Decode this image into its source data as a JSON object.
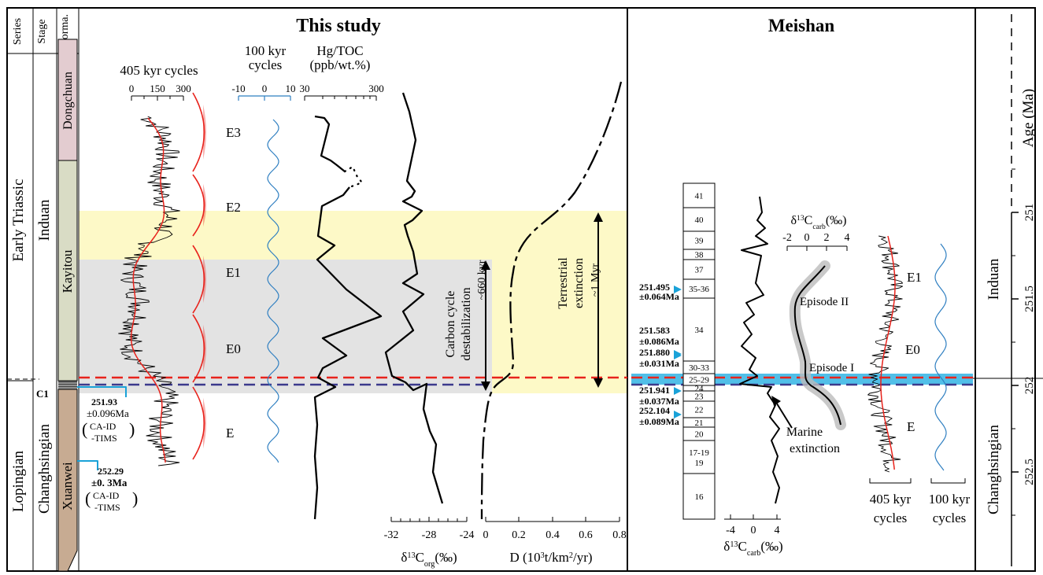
{
  "colors": {
    "red": "#e8231c",
    "blue": "#2f7fc1",
    "cyan": "#17a9e0",
    "yellow": "#fdf9c7",
    "grey": "#e3e3e3",
    "dong": "#e3ccd0",
    "kay": "#d9dcc5",
    "xuan": "#c7ab92",
    "navy": "#3c3a8c",
    "black": "#000000"
  },
  "headers": {
    "series": "Series",
    "stage": "Stage",
    "formation": "Forma."
  },
  "series": {
    "early": "Early Triassic",
    "lopingian": "Lopingian"
  },
  "stages": {
    "induan": "Induan",
    "changhsingian": "Changhsingian"
  },
  "formations": {
    "dongchuan": "Dongchuan",
    "kayitou": "Kayitou",
    "xuanwei": "Xuanwei",
    "c1": "C1"
  },
  "this_study": {
    "title": "This study",
    "ages": [
      {
        "age": "251.93",
        "err": "±0.096Ma",
        "method1": "CA-ID",
        "method2": "-TIMS"
      },
      {
        "age": "252.29",
        "err": "±0. 3Ma",
        "method1": "CA-ID",
        "method2": "-TIMS"
      }
    ],
    "col405": {
      "title": "405 kyr cycles",
      "ticks": [
        "0",
        "150",
        "300"
      ],
      "ecc": [
        "E3",
        "E2",
        "E1",
        "E0",
        "E"
      ]
    },
    "col100": {
      "title1": "100 kyr",
      "title2": "cycles",
      "ticks": [
        "-10",
        "0",
        "10"
      ]
    },
    "hg": {
      "title1": "Hg/TOC",
      "title2": "(ppb/wt.%)",
      "ticks": [
        "30",
        "300"
      ]
    },
    "corg": {
      "label_pre": "δ",
      "label_sup": "13",
      "label_main": "C",
      "label_sub": "org",
      "label_post": "(‰)",
      "ticks": [
        "-32",
        "-28",
        "-24"
      ]
    },
    "d": {
      "label_pre": "D (10",
      "label_sup": "3",
      "label_mid": "t/km",
      "label_sup2": "2",
      "label_post": "/yr)",
      "ticks": [
        "0",
        "0.2",
        "0.4",
        "0.6",
        "0.8"
      ]
    },
    "carbon_text": [
      "Carbon cycle",
      "destabilization",
      "~660 kyr"
    ],
    "terrestrial_text": [
      "Terrestrial",
      "extinction",
      "~1 Myr"
    ]
  },
  "meishan": {
    "title": "Meishan",
    "beds": [
      "41",
      "40",
      "39",
      "38",
      "37",
      "35-36",
      "34",
      "30-33",
      "25-29",
      "24",
      "23",
      "22",
      "21",
      "20",
      "17-19",
      "16"
    ],
    "ages": [
      {
        "age": "251.495",
        "err": "±0.064Ma"
      },
      {
        "age": "251.583",
        "err": "±0.086Ma"
      },
      {
        "age": "251.880",
        "err": "±0.031Ma"
      },
      {
        "age": "251.941",
        "err": "±0.037Ma"
      },
      {
        "age": "252.104",
        "err": "±0.089Ma"
      }
    ],
    "carb_ticks": [
      "-4",
      "0",
      "4"
    ],
    "carb2_ticks": [
      "-2",
      "0",
      "2",
      "4"
    ],
    "carb_label_pre": "δ",
    "carb_label_sup": "13",
    "carb_label_main": "C",
    "carb_label_sub": "carb",
    "carb_label_post": "(‰)",
    "episode1": "Episode I",
    "episode2": "Episode II",
    "marine": [
      "Marine",
      "extinction"
    ],
    "ecc": [
      "E1",
      "E0",
      "E"
    ],
    "c405": [
      "405 kyr",
      "cycles"
    ],
    "c100": [
      "100 kyr",
      "cycles"
    ]
  },
  "age_axis": {
    "title": "Age (Ma)",
    "ticks": [
      "251",
      "251.5",
      "252",
      "252.5"
    ],
    "induan": "Induan",
    "changhsingian": "Changhsingian"
  },
  "chart_data": [
    {
      "type": "line",
      "title": "405 kyr cycles",
      "xlim": [
        0,
        300
      ],
      "x_ticks": [
        0,
        150,
        300
      ]
    },
    {
      "type": "line",
      "title": "100 kyr cycles",
      "xlim": [
        -10,
        10
      ],
      "x_ticks": [
        -10,
        0,
        10
      ]
    },
    {
      "type": "line",
      "title": "Hg/TOC",
      "xlabel": "(ppb/wt.%)",
      "xlim": [
        30,
        300
      ],
      "x_ticks": [
        30,
        300
      ]
    },
    {
      "type": "line",
      "xlabel": "δ13Corg(‰)",
      "xlim": [
        -32,
        -24
      ],
      "x_ticks": [
        -32,
        -28,
        -24
      ]
    },
    {
      "type": "line",
      "xlabel": "D (10^3 t/km^2/yr)",
      "xlim": [
        0,
        0.8
      ],
      "x_ticks": [
        0,
        0.2,
        0.4,
        0.6,
        0.8
      ]
    },
    {
      "type": "line",
      "xlabel": "δ13Ccarb(‰)",
      "xlim": [
        -4,
        4
      ],
      "x_ticks": [
        -4,
        0,
        4
      ]
    },
    {
      "type": "line",
      "xlabel": "δ13Ccarb(‰)",
      "xlim": [
        -2,
        4
      ],
      "x_ticks": [
        -2,
        0,
        2,
        4
      ]
    },
    {
      "type": "line",
      "ylabel": "Age (Ma)",
      "ylim": [
        250.6,
        252.6
      ],
      "y_ticks": [
        251,
        251.5,
        252,
        252.5
      ]
    }
  ]
}
